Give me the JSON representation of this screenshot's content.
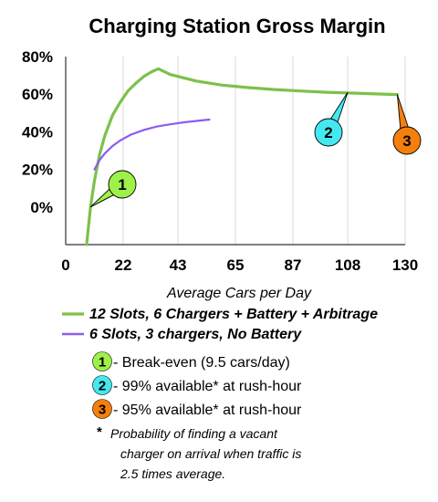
{
  "chart_data": {
    "type": "line",
    "title": "Charging Station Gross Margin",
    "xlabel": "Average Cars per Day",
    "ylabel": "",
    "xlim": [
      0,
      130
    ],
    "ylim": [
      -20,
      80
    ],
    "x_ticks": [
      0,
      22,
      43,
      65,
      87,
      108,
      130
    ],
    "y_ticks": [
      0,
      20,
      40,
      60,
      80
    ],
    "y_tick_labels": [
      "0%",
      "20%",
      "40%",
      "60%",
      "80%"
    ],
    "grid": "vertical",
    "series": [
      {
        "name": "12 Slots, 6 Chargers + Battery + Arbitrage",
        "color": "#7cc14a",
        "x": [
          8,
          9.5,
          11,
          13,
          15,
          18,
          21,
          24,
          27,
          30,
          33,
          35.5,
          40,
          50,
          60,
          70,
          80,
          90,
          100,
          110,
          120,
          127
        ],
        "y": [
          -20,
          0,
          14,
          28,
          38,
          49,
          56,
          62,
          66,
          69.5,
          72,
          73.5,
          70.5,
          67,
          64.8,
          63.5,
          62.5,
          61.7,
          61,
          60.6,
          60.1,
          59.8
        ]
      },
      {
        "name": "6 Slots, 3 chargers, No Battery",
        "color": "#8c5cf0",
        "x": [
          11,
          13,
          15,
          18,
          21,
          25,
          30,
          35,
          40,
          45,
          50,
          55
        ],
        "y": [
          20,
          25,
          28.5,
          32.5,
          35.5,
          38.5,
          41,
          42.8,
          44,
          45,
          45.8,
          46.5
        ]
      }
    ],
    "callouts": [
      {
        "label": "1",
        "x": 9.5,
        "y": 0,
        "color": "#9ef04a"
      },
      {
        "label": "2",
        "x": 108,
        "y": 61,
        "color": "#44e8f0"
      },
      {
        "label": "3",
        "x": 127,
        "y": 59.8,
        "color": "#f57f0c"
      }
    ]
  },
  "notes": [
    {
      "label": "1",
      "color": "#9ef04a",
      "text": "- Break-even (9.5 cars/day)"
    },
    {
      "label": "2",
      "color": "#44e8f0",
      "text": "- 99% available* at rush-hour"
    },
    {
      "label": "3",
      "color": "#f57f0c",
      "text": "- 95% available* at rush-hour"
    }
  ],
  "footnote": {
    "star": "*",
    "lines": [
      "Probability of finding a vacant",
      "charger on arrival when traffic is",
      "2.5 times average."
    ]
  }
}
